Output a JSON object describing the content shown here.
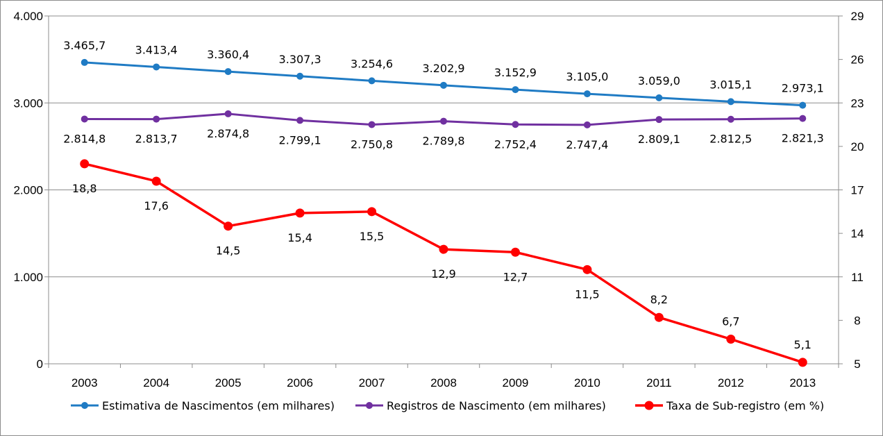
{
  "chart_data": {
    "type": "line",
    "categories": [
      "2003",
      "2004",
      "2005",
      "2006",
      "2007",
      "2008",
      "2009",
      "2010",
      "2011",
      "2012",
      "2013"
    ],
    "y_left": {
      "min": 0,
      "max": 4000,
      "ticks": [
        "0",
        "1.000",
        "2.000",
        "3.000",
        "4.000"
      ],
      "tick_values": [
        0,
        1000,
        2000,
        3000,
        4000
      ]
    },
    "y_right": {
      "min": 5,
      "max": 29,
      "ticks": [
        "5",
        "8",
        "11",
        "14",
        "17",
        "20",
        "23",
        "26",
        "29"
      ],
      "tick_values": [
        5,
        8,
        11,
        14,
        17,
        20,
        23,
        26,
        29
      ]
    },
    "grid": "horizontal",
    "legend_position": "bottom",
    "series": [
      {
        "name": "Estimativa de Nascimentos (em milhares)",
        "axis": "left",
        "color": "#1f7bc4",
        "label_position": "above",
        "values": [
          3465.7,
          3413.4,
          3360.4,
          3307.3,
          3254.6,
          3202.9,
          3152.9,
          3105.0,
          3059.0,
          3015.1,
          2973.1
        ],
        "labels": [
          "3.465,7",
          "3.413,4",
          "3.360,4",
          "3.307,3",
          "3.254,6",
          "3.202,9",
          "3.152,9",
          "3.105,0",
          "3.059,0",
          "3.015,1",
          "2.973,1"
        ]
      },
      {
        "name": "Registros de Nascimento (em milhares)",
        "axis": "left",
        "color": "#7030a0",
        "label_position": "below",
        "values": [
          2814.8,
          2813.7,
          2874.8,
          2799.1,
          2750.8,
          2789.8,
          2752.4,
          2747.4,
          2809.1,
          2812.5,
          2821.3
        ],
        "labels": [
          "2.814,8",
          "2.813,7",
          "2.874,8",
          "2.799,1",
          "2.750,8",
          "2.789,8",
          "2.752,4",
          "2.747,4",
          "2.809,1",
          "2.812,5",
          "2.821,3"
        ]
      },
      {
        "name": "Taxa de Sub-registro (em %)",
        "axis": "right",
        "color": "#ff0000",
        "label_position": "mixed",
        "values": [
          18.8,
          17.6,
          14.5,
          15.4,
          15.5,
          12.9,
          12.7,
          11.5,
          8.2,
          6.7,
          5.1
        ],
        "labels": [
          "18,8",
          "17,6",
          "14,5",
          "15,4",
          "15,5",
          "12,9",
          "12,7",
          "11,5",
          "8,2",
          "6,7",
          "5,1"
        ]
      }
    ]
  }
}
